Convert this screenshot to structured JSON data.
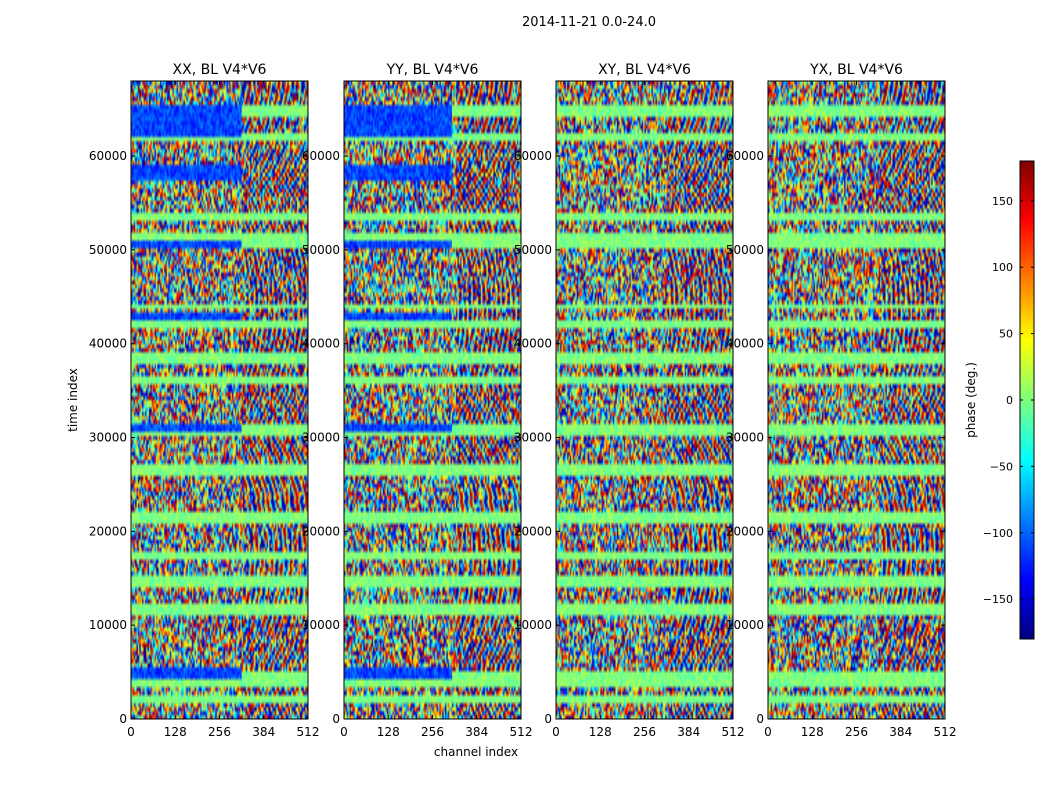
{
  "chart_data": {
    "type": "heatmap",
    "suptitle": "2014-11-21 0.0-24.0",
    "xlabel": "channel index",
    "ylabel": "time index",
    "xlim": [
      0,
      512
    ],
    "ylim": [
      0,
      68000
    ],
    "xticks": [
      0,
      128,
      256,
      384,
      512
    ],
    "yticks": [
      0,
      10000,
      20000,
      30000,
      40000,
      50000,
      60000
    ],
    "panels": [
      {
        "title": "XX, BL V4*V6",
        "polarization": "XX"
      },
      {
        "title": "YY, BL V4*V6",
        "polarization": "YY"
      },
      {
        "title": "XY, BL V4*V6",
        "polarization": "XY"
      },
      {
        "title": "YX, BL V4*V6",
        "polarization": "YX"
      }
    ],
    "colorbar": {
      "label": "phase (deg.)",
      "range": [
        -180,
        180
      ],
      "ticks": [
        -150,
        -100,
        -50,
        0,
        50,
        100,
        150
      ],
      "tick_labels": [
        "−150",
        "−100",
        "−50",
        "0",
        "50",
        "100",
        "150"
      ],
      "colormap": "jet",
      "colors": [
        "#00007f",
        "#0000ff",
        "#007fff",
        "#00ffff",
        "#7fff7f",
        "#ffff00",
        "#ff7f00",
        "#ff0000",
        "#7f0000"
      ]
    }
  }
}
